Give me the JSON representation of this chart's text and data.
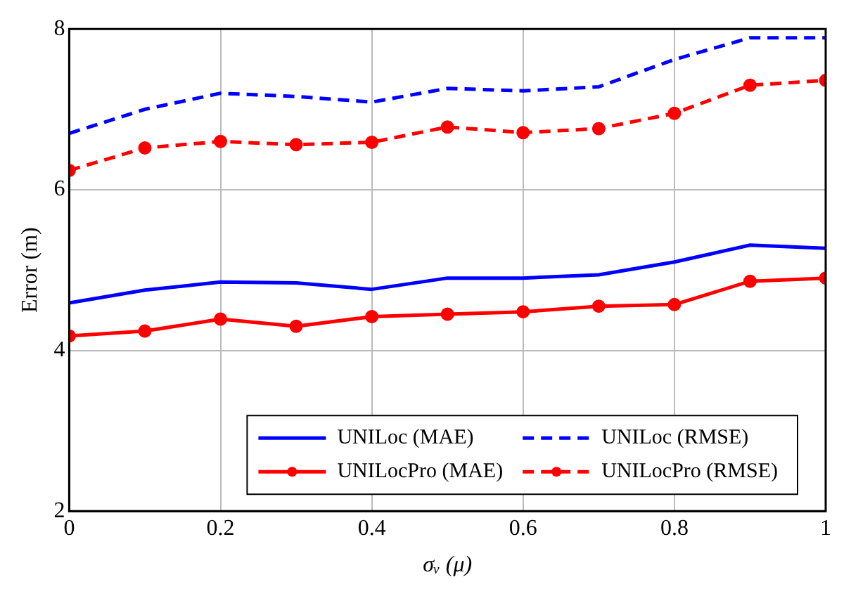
{
  "chart_data": {
    "type": "line",
    "xlabel": "σᵥ (μ)",
    "ylabel": "Error (m)",
    "x": [
      0,
      0.1,
      0.2,
      0.3,
      0.4,
      0.5,
      0.6,
      0.7,
      0.8,
      0.9,
      1
    ],
    "xlim": [
      0,
      1
    ],
    "xticks": [
      0,
      0.2,
      0.4,
      0.6,
      0.8,
      1
    ],
    "ylim": [
      2,
      8
    ],
    "yticks": [
      2,
      4,
      6,
      8
    ],
    "grid": true,
    "legend": "bottom right",
    "series": [
      {
        "name": "UNILoc (MAE)",
        "color": "#0000ff",
        "marker": "none",
        "line_style": "solid",
        "values": [
          4.59,
          4.75,
          4.85,
          4.84,
          4.76,
          4.9,
          4.9,
          4.94,
          5.1,
          5.31,
          5.27
        ]
      },
      {
        "name": "UNILoc (RMSE)",
        "color": "#0000ff",
        "marker": "none",
        "line_style": "dashed",
        "values": [
          6.7,
          7.0,
          7.2,
          7.16,
          7.09,
          7.26,
          7.23,
          7.28,
          7.62,
          7.89,
          7.89
        ]
      },
      {
        "name": "UNILocPro (MAE)",
        "color": "#ff0000",
        "marker": "circle",
        "line_style": "solid",
        "values": [
          4.18,
          4.24,
          4.39,
          4.3,
          4.42,
          4.45,
          4.48,
          4.55,
          4.57,
          4.86,
          4.9
        ]
      },
      {
        "name": "UNILocPro (RMSE)",
        "color": "#ff0000",
        "marker": "circle",
        "line_style": "dashed",
        "values": [
          6.24,
          6.52,
          6.6,
          6.56,
          6.59,
          6.78,
          6.71,
          6.76,
          6.95,
          7.3,
          7.36
        ]
      }
    ]
  }
}
